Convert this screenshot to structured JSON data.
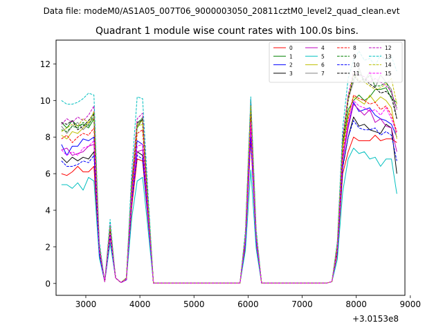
{
  "header": {
    "suptitle": "Data file: modeM0/AS1A05_007T06_9000003050_20811cztM0_level2_quad_clean.evt"
  },
  "chart_data": {
    "type": "line",
    "title": "Quadrant 1 module wise count rates with 100.0s bins.",
    "xlabel": "",
    "ylabel": "",
    "offset_label": "+3.0153e8",
    "xlim": [
      2450,
      8900
    ],
    "ylim": [
      -0.65,
      13.3
    ],
    "x_ticks": [
      3000,
      4000,
      5000,
      6000,
      7000,
      8000,
      9000
    ],
    "x_tick_labels": [
      "3000",
      "4000",
      "5000",
      "6000",
      "7000",
      "8000",
      "9000"
    ],
    "y_ticks": [
      0,
      2,
      4,
      6,
      8,
      10,
      12
    ],
    "y_tick_labels": [
      "0",
      "2",
      "4",
      "6",
      "8",
      "10",
      "12"
    ],
    "legend_position": "top-right",
    "x": [
      2550,
      2650,
      2750,
      2850,
      2950,
      3050,
      3150,
      3250,
      3350,
      3450,
      3550,
      3650,
      3750,
      3850,
      3950,
      4050,
      4150,
      4250,
      4350,
      4450,
      4550,
      4650,
      4750,
      4850,
      4950,
      5050,
      5150,
      5250,
      5350,
      5450,
      5550,
      5650,
      5750,
      5850,
      5950,
      6050,
      6150,
      6250,
      6350,
      6450,
      6550,
      6650,
      6750,
      6850,
      6950,
      7050,
      7150,
      7250,
      7350,
      7450,
      7550,
      7650,
      7750,
      7850,
      7950,
      8050,
      8150,
      8250,
      8350,
      8450,
      8550,
      8650,
      8750
    ],
    "series": [
      {
        "name": "0",
        "color": "#ff0000",
        "dash": "solid",
        "values": [
          6.0,
          5.9,
          6.1,
          6.4,
          6.1,
          6.1,
          6.4,
          1.6,
          0.1,
          2.5,
          0.3,
          0.05,
          0.2,
          4.2,
          6.8,
          6.7,
          3.5,
          0.02,
          0.02,
          0.02,
          0.02,
          0.02,
          0.02,
          0.02,
          0.02,
          0.02,
          0.02,
          0.02,
          0.02,
          0.02,
          0.02,
          0.02,
          0.02,
          0.02,
          2.0,
          7.9,
          2.2,
          0.02,
          0.02,
          0.02,
          0.02,
          0.02,
          0.02,
          0.02,
          0.02,
          0.02,
          0.02,
          0.02,
          0.02,
          0.02,
          0.1,
          1.6,
          6.0,
          7.2,
          8.0,
          7.8,
          7.8,
          7.8,
          8.1,
          7.8,
          7.9,
          7.9,
          7.7
        ]
      },
      {
        "name": "1",
        "color": "#008000",
        "dash": "solid",
        "values": [
          8.8,
          8.5,
          8.9,
          8.6,
          8.7,
          8.5,
          9.0,
          1.9,
          0.1,
          3.1,
          0.3,
          0.05,
          0.3,
          5.6,
          8.5,
          9.0,
          4.5,
          0.02,
          0.02,
          0.02,
          0.02,
          0.02,
          0.02,
          0.02,
          0.02,
          0.02,
          0.02,
          0.02,
          0.02,
          0.02,
          0.02,
          0.02,
          0.02,
          0.02,
          2.5,
          9.5,
          2.6,
          0.02,
          0.02,
          0.02,
          0.02,
          0.02,
          0.02,
          0.02,
          0.02,
          0.02,
          0.02,
          0.02,
          0.02,
          0.02,
          0.1,
          2.0,
          7.5,
          9.5,
          10.0,
          10.3,
          10.0,
          10.2,
          10.6,
          10.6,
          10.7,
          10.1,
          9.9
        ]
      },
      {
        "name": "2",
        "color": "#0000ff",
        "dash": "solid",
        "values": [
          7.6,
          7.0,
          7.5,
          7.5,
          7.9,
          7.8,
          8.0,
          1.8,
          0.1,
          2.8,
          0.3,
          0.05,
          0.2,
          5.0,
          7.8,
          7.6,
          4.0,
          0.02,
          0.02,
          0.02,
          0.02,
          0.02,
          0.02,
          0.02,
          0.02,
          0.02,
          0.02,
          0.02,
          0.02,
          0.02,
          0.02,
          0.02,
          0.02,
          0.02,
          2.3,
          8.6,
          2.4,
          0.02,
          0.02,
          0.02,
          0.02,
          0.02,
          0.02,
          0.02,
          0.02,
          0.02,
          0.02,
          0.02,
          0.02,
          0.02,
          0.1,
          1.8,
          6.8,
          8.6,
          9.9,
          9.4,
          9.5,
          9.6,
          9.2,
          9.0,
          8.9,
          8.7,
          8.0
        ]
      },
      {
        "name": "3",
        "color": "#000000",
        "dash": "solid",
        "values": [
          6.9,
          6.6,
          6.9,
          6.7,
          6.9,
          6.8,
          7.2,
          1.7,
          0.1,
          2.6,
          0.3,
          0.05,
          0.2,
          4.6,
          7.2,
          7.0,
          3.7,
          0.02,
          0.02,
          0.02,
          0.02,
          0.02,
          0.02,
          0.02,
          0.02,
          0.02,
          0.02,
          0.02,
          0.02,
          0.02,
          0.02,
          0.02,
          0.02,
          0.02,
          2.4,
          9.4,
          2.5,
          0.02,
          0.02,
          0.02,
          0.02,
          0.02,
          0.02,
          0.02,
          0.02,
          0.02,
          0.02,
          0.02,
          0.02,
          0.02,
          0.1,
          1.7,
          6.4,
          8.0,
          9.1,
          8.6,
          8.7,
          8.4,
          8.3,
          8.2,
          8.7,
          8.5,
          6.0
        ]
      },
      {
        "name": "4",
        "color": "#bf00bf",
        "dash": "solid",
        "values": [
          7.3,
          7.4,
          7.0,
          7.1,
          7.2,
          7.5,
          7.6,
          1.8,
          0.1,
          2.6,
          0.3,
          0.05,
          0.2,
          4.7,
          7.2,
          7.3,
          3.8,
          0.02,
          0.02,
          0.02,
          0.02,
          0.02,
          0.02,
          0.02,
          0.02,
          0.02,
          0.02,
          0.02,
          0.02,
          0.02,
          0.02,
          0.02,
          0.02,
          0.02,
          2.3,
          8.7,
          2.4,
          0.02,
          0.02,
          0.02,
          0.02,
          0.02,
          0.02,
          0.02,
          0.02,
          0.02,
          0.02,
          0.02,
          0.02,
          0.02,
          0.1,
          1.8,
          6.7,
          8.5,
          9.8,
          9.5,
          9.2,
          9.5,
          8.8,
          9.0,
          8.6,
          8.5,
          7.2
        ]
      },
      {
        "name": "5",
        "color": "#00bfbf",
        "dash": "solid",
        "values": [
          5.4,
          5.4,
          5.2,
          5.5,
          5.1,
          5.8,
          5.6,
          1.4,
          0.1,
          2.2,
          0.3,
          0.05,
          0.2,
          3.6,
          5.6,
          5.8,
          3.0,
          0.02,
          0.02,
          0.02,
          0.02,
          0.02,
          0.02,
          0.02,
          0.02,
          0.02,
          0.02,
          0.02,
          0.02,
          0.02,
          0.02,
          0.02,
          0.02,
          0.02,
          1.8,
          6.2,
          1.9,
          0.02,
          0.02,
          0.02,
          0.02,
          0.02,
          0.02,
          0.02,
          0.02,
          0.02,
          0.02,
          0.02,
          0.02,
          0.02,
          0.1,
          1.3,
          5.0,
          6.8,
          7.4,
          7.1,
          7.2,
          6.8,
          6.9,
          6.4,
          6.8,
          6.8,
          4.9
        ]
      },
      {
        "name": "6",
        "color": "#bfbf00",
        "dash": "solid",
        "values": [
          8.1,
          7.9,
          8.3,
          8.2,
          8.5,
          8.8,
          9.0,
          2.0,
          0.1,
          3.0,
          0.3,
          0.05,
          0.3,
          5.2,
          8.6,
          8.7,
          4.3,
          0.02,
          0.02,
          0.02,
          0.02,
          0.02,
          0.02,
          0.02,
          0.02,
          0.02,
          0.02,
          0.02,
          0.02,
          0.02,
          0.02,
          0.02,
          0.02,
          0.02,
          2.6,
          9.9,
          2.7,
          0.02,
          0.02,
          0.02,
          0.02,
          0.02,
          0.02,
          0.02,
          0.02,
          0.02,
          0.02,
          0.02,
          0.02,
          0.02,
          0.1,
          2.0,
          7.4,
          9.2,
          10.2,
          10.0,
          9.8,
          10.3,
          9.9,
          10.2,
          10.0,
          9.6,
          7.9
        ]
      },
      {
        "name": "7",
        "color": "#808080",
        "dash": "solid",
        "values": [
          8.6,
          8.2,
          8.6,
          8.8,
          8.4,
          8.7,
          9.1,
          1.9,
          0.1,
          3.0,
          0.3,
          0.05,
          0.3,
          5.5,
          8.6,
          9.1,
          4.5,
          0.02,
          0.02,
          0.02,
          0.02,
          0.02,
          0.02,
          0.02,
          0.02,
          0.02,
          0.02,
          0.02,
          0.02,
          0.02,
          0.02,
          0.02,
          0.02,
          0.02,
          2.6,
          9.9,
          2.7,
          0.02,
          0.02,
          0.02,
          0.02,
          0.02,
          0.02,
          0.02,
          0.02,
          0.02,
          0.02,
          0.02,
          0.02,
          0.02,
          0.1,
          2.1,
          7.8,
          10.1,
          11.0,
          11.8,
          11.0,
          11.6,
          10.7,
          11.4,
          11.0,
          10.6,
          9.0
        ]
      },
      {
        "name": "8",
        "color": "#ff0000",
        "dash": "dashed",
        "values": [
          7.9,
          8.1,
          7.7,
          8.0,
          8.2,
          8.1,
          8.5,
          1.9,
          0.1,
          2.9,
          0.3,
          0.05,
          0.2,
          5.1,
          8.2,
          8.4,
          4.2,
          0.02,
          0.02,
          0.02,
          0.02,
          0.02,
          0.02,
          0.02,
          0.02,
          0.02,
          0.02,
          0.02,
          0.02,
          0.02,
          0.02,
          0.02,
          0.02,
          0.02,
          2.5,
          9.2,
          2.6,
          0.02,
          0.02,
          0.02,
          0.02,
          0.02,
          0.02,
          0.02,
          0.02,
          0.02,
          0.02,
          0.02,
          0.02,
          0.02,
          0.1,
          1.9,
          7.1,
          9.0,
          10.3,
          10.1,
          10.0,
          9.8,
          9.9,
          9.5,
          9.7,
          9.2,
          8.3
        ]
      },
      {
        "name": "9",
        "color": "#008000",
        "dash": "dashed",
        "values": [
          8.4,
          8.3,
          8.6,
          8.5,
          8.8,
          8.6,
          9.3,
          2.0,
          0.1,
          3.1,
          0.3,
          0.05,
          0.3,
          5.4,
          8.8,
          9.0,
          4.5,
          0.02,
          0.02,
          0.02,
          0.02,
          0.02,
          0.02,
          0.02,
          0.02,
          0.02,
          0.02,
          0.02,
          0.02,
          0.02,
          0.02,
          0.02,
          0.02,
          0.02,
          2.6,
          10.0,
          2.7,
          0.02,
          0.02,
          0.02,
          0.02,
          0.02,
          0.02,
          0.02,
          0.02,
          0.02,
          0.02,
          0.02,
          0.02,
          0.02,
          0.1,
          2.1,
          7.8,
          10.2,
          11.2,
          11.6,
          11.0,
          11.4,
          10.8,
          10.8,
          11.0,
          10.4,
          9.6
        ]
      },
      {
        "name": "10",
        "color": "#0000ff",
        "dash": "dashed",
        "values": [
          6.7,
          6.4,
          6.4,
          6.5,
          6.7,
          6.6,
          7.0,
          1.6,
          0.1,
          2.6,
          0.3,
          0.05,
          0.2,
          4.5,
          7.0,
          6.8,
          3.6,
          0.02,
          0.02,
          0.02,
          0.02,
          0.02,
          0.02,
          0.02,
          0.02,
          0.02,
          0.02,
          0.02,
          0.02,
          0.02,
          0.02,
          0.02,
          0.02,
          0.02,
          2.2,
          8.0,
          2.3,
          0.02,
          0.02,
          0.02,
          0.02,
          0.02,
          0.02,
          0.02,
          0.02,
          0.02,
          0.02,
          0.02,
          0.02,
          0.02,
          0.1,
          1.7,
          6.3,
          8.0,
          8.9,
          8.5,
          8.4,
          8.4,
          8.5,
          8.1,
          8.3,
          8.1,
          6.7
        ]
      },
      {
        "name": "11",
        "color": "#000000",
        "dash": "dashed",
        "values": [
          8.8,
          8.7,
          8.9,
          8.4,
          8.6,
          8.9,
          9.3,
          2.0,
          0.1,
          3.0,
          0.3,
          0.05,
          0.3,
          5.5,
          8.8,
          8.9,
          4.4,
          0.02,
          0.02,
          0.02,
          0.02,
          0.02,
          0.02,
          0.02,
          0.02,
          0.02,
          0.02,
          0.02,
          0.02,
          0.02,
          0.02,
          0.02,
          0.02,
          0.02,
          2.6,
          9.8,
          2.7,
          0.02,
          0.02,
          0.02,
          0.02,
          0.02,
          0.02,
          0.02,
          0.02,
          0.02,
          0.02,
          0.02,
          0.02,
          0.02,
          0.1,
          2.1,
          7.7,
          10.0,
          11.4,
          11.0,
          11.2,
          10.9,
          10.7,
          10.4,
          10.5,
          10.2,
          9.0
        ]
      },
      {
        "name": "12",
        "color": "#bf00bf",
        "dash": "dashed",
        "values": [
          8.7,
          9.0,
          8.8,
          9.1,
          8.9,
          9.2,
          9.7,
          2.1,
          0.1,
          3.2,
          0.3,
          0.05,
          0.3,
          5.6,
          9.0,
          9.3,
          4.6,
          0.02,
          0.02,
          0.02,
          0.02,
          0.02,
          0.02,
          0.02,
          0.02,
          0.02,
          0.02,
          0.02,
          0.02,
          0.02,
          0.02,
          0.02,
          0.02,
          0.02,
          2.7,
          10.1,
          2.8,
          0.02,
          0.02,
          0.02,
          0.02,
          0.02,
          0.02,
          0.02,
          0.02,
          0.02,
          0.02,
          0.02,
          0.02,
          0.02,
          0.1,
          2.2,
          8.0,
          10.3,
          11.6,
          11.4,
          11.3,
          11.0,
          11.2,
          11.0,
          10.8,
          10.5,
          9.5
        ]
      },
      {
        "name": "13",
        "color": "#00bfbf",
        "dash": "dashed",
        "values": [
          10.0,
          9.8,
          9.8,
          9.9,
          10.1,
          10.4,
          10.3,
          2.3,
          0.1,
          3.5,
          0.3,
          0.05,
          0.3,
          6.2,
          10.2,
          10.1,
          5.0,
          0.02,
          0.02,
          0.02,
          0.02,
          0.02,
          0.02,
          0.02,
          0.02,
          0.02,
          0.02,
          0.02,
          0.02,
          0.02,
          0.02,
          0.02,
          0.02,
          0.02,
          2.9,
          10.2,
          3.0,
          0.02,
          0.02,
          0.02,
          0.02,
          0.02,
          0.02,
          0.02,
          0.02,
          0.02,
          0.02,
          0.02,
          0.02,
          0.02,
          0.1,
          2.3,
          8.5,
          11.2,
          12.2,
          12.7,
          12.2,
          12.3,
          11.9,
          12.5,
          12.2,
          12.4,
          11.6
        ]
      },
      {
        "name": "14",
        "color": "#bfbf00",
        "dash": "dashed",
        "values": [
          8.3,
          8.5,
          8.7,
          8.6,
          9.0,
          8.8,
          9.4,
          2.0,
          0.1,
          3.1,
          0.3,
          0.05,
          0.3,
          5.3,
          8.7,
          8.9,
          4.4,
          0.02,
          0.02,
          0.02,
          0.02,
          0.02,
          0.02,
          0.02,
          0.02,
          0.02,
          0.02,
          0.02,
          0.02,
          0.02,
          0.02,
          0.02,
          0.02,
          0.02,
          2.6,
          9.7,
          2.7,
          0.02,
          0.02,
          0.02,
          0.02,
          0.02,
          0.02,
          0.02,
          0.02,
          0.02,
          0.02,
          0.02,
          0.02,
          0.02,
          0.1,
          2.1,
          7.7,
          10.1,
          11.5,
          11.1,
          11.0,
          10.8,
          10.6,
          10.7,
          10.9,
          11.2,
          9.8
        ]
      },
      {
        "name": "15",
        "color": "#ff00ff",
        "dash": "dashed",
        "values": [
          7.3,
          7.0,
          7.2,
          7.0,
          7.4,
          7.5,
          7.8,
          1.8,
          0.1,
          2.7,
          0.3,
          0.05,
          0.2,
          4.8,
          7.5,
          7.6,
          3.9,
          0.02,
          0.02,
          0.02,
          0.02,
          0.02,
          0.02,
          0.02,
          0.02,
          0.02,
          0.02,
          0.02,
          0.02,
          0.02,
          0.02,
          0.02,
          0.02,
          0.02,
          2.4,
          8.8,
          2.5,
          0.02,
          0.02,
          0.02,
          0.02,
          0.02,
          0.02,
          0.02,
          0.02,
          0.02,
          0.02,
          0.02,
          0.02,
          0.02,
          0.1,
          1.8,
          6.9,
          8.8,
          10.0,
          9.7,
          9.6,
          9.4,
          9.5,
          9.2,
          9.6,
          9.0,
          8.2
        ]
      }
    ]
  }
}
